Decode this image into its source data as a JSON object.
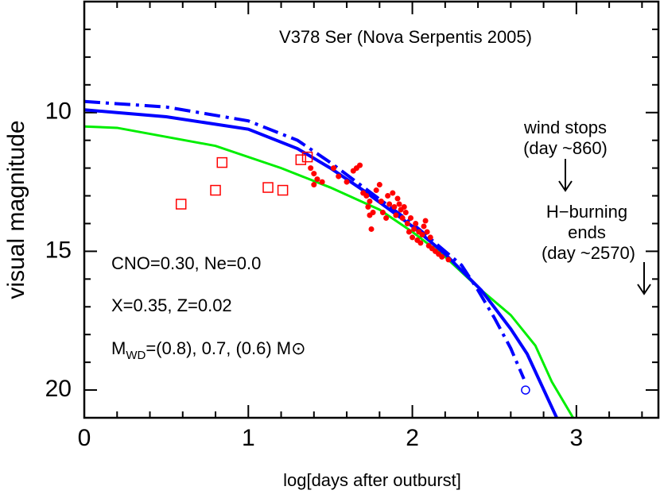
{
  "chart_data": {
    "type": "line",
    "title": "V378 Ser (Nova Serpentis 2005)",
    "xlabel": "log[days after outburst]",
    "ylabel": "visual magnitude",
    "xlim": [
      0,
      3.5
    ],
    "ylim": [
      21,
      6
    ],
    "xticks": [
      0,
      1,
      2,
      3
    ],
    "yticks": [
      10,
      15,
      20
    ],
    "xminorticks": [
      0.2,
      0.4,
      0.6,
      0.8,
      1.2,
      1.4,
      1.6,
      1.8,
      2.2,
      2.4,
      2.6,
      2.8,
      3.2,
      3.4
    ],
    "yminorticks": [
      7,
      8,
      9,
      11,
      12,
      13,
      14,
      16,
      17,
      18,
      19
    ],
    "notes": [
      "wind stops",
      "(day ~860)",
      "H−burning",
      "ends",
      "(day ~2570)",
      "CNO=0.30, Ne=0.0",
      "X=0.35, Z=0.02"
    ],
    "mwd_label": [
      "M",
      "WD",
      "=(0.8), 0.7, (0.6) M⊙"
    ],
    "series": [
      {
        "color": "#00ee00",
        "style": "solid",
        "x": [
          0,
          0.2,
          0.8,
          1.2,
          1.5,
          1.8,
          2.0,
          2.2,
          2.4,
          2.6,
          2.75,
          2.85,
          2.98
        ],
        "values": [
          10.5,
          10.55,
          11.2,
          12.0,
          12.7,
          13.5,
          14.3,
          15.2,
          16.3,
          17.3,
          18.4,
          19.7,
          21
        ]
      },
      {
        "color": "#0000ff",
        "style": "solid",
        "x": [
          0,
          0.2,
          0.5,
          1.0,
          1.3,
          1.5,
          1.7,
          2.0,
          2.2,
          2.42,
          2.6,
          2.7,
          2.88
        ],
        "values": [
          9.9,
          10.0,
          10.15,
          10.6,
          11.3,
          12.0,
          12.8,
          14.1,
          15.1,
          16.4,
          17.8,
          18.7,
          21
        ]
      },
      {
        "color": "#0000ff",
        "style": "dashdot",
        "x": [
          0,
          0.5,
          1.0,
          1.3,
          1.5,
          2.0,
          2.3,
          2.4,
          2.5,
          2.6,
          2.68
        ],
        "values": [
          9.6,
          9.8,
          10.3,
          11.0,
          11.8,
          14.0,
          15.5,
          16.4,
          17.4,
          18.5,
          19.6
        ]
      }
    ],
    "markers": [
      {
        "marker": "dot",
        "color": "#ff0000",
        "x": [
          1.38,
          1.4,
          1.42,
          1.4,
          1.45,
          1.52,
          1.55,
          1.6,
          1.64,
          1.66,
          1.68,
          1.7,
          1.72,
          1.73,
          1.74,
          1.74,
          1.75,
          1.76,
          1.78,
          1.8,
          1.81,
          1.82,
          1.84,
          1.85,
          1.86,
          1.88,
          1.89,
          1.9,
          1.91,
          1.92,
          1.93,
          1.94,
          1.95,
          1.96,
          1.97,
          1.98,
          1.99,
          2.0,
          2.01,
          2.02,
          2.03,
          2.04,
          2.05,
          2.06,
          2.07,
          2.08,
          2.09,
          2.1,
          2.11,
          2.12,
          2.14,
          2.16,
          2.18,
          2.22
        ],
        "y": [
          12.0,
          12.2,
          12.4,
          12.6,
          12.5,
          12.0,
          12.3,
          12.5,
          12.1,
          12.0,
          11.9,
          12.9,
          13.0,
          13.4,
          13.2,
          13.7,
          14.2,
          13.6,
          12.8,
          12.6,
          13.2,
          13.6,
          13.8,
          13.0,
          13.3,
          12.9,
          13.4,
          13.7,
          13.1,
          13.3,
          13.5,
          13.8,
          13.4,
          13.6,
          14.0,
          14.3,
          13.8,
          14.5,
          14.2,
          14.0,
          14.6,
          14.3,
          14.7,
          14.4,
          14.1,
          13.9,
          14.3,
          14.8,
          14.5,
          14.9,
          15.0,
          15.1,
          15.2,
          15.3
        ]
      },
      {
        "marker": "square",
        "color": "#ff0000",
        "x": [
          0.59,
          0.8,
          0.84,
          1.12,
          1.21,
          1.32,
          1.36
        ],
        "y": [
          13.3,
          12.8,
          11.8,
          12.7,
          12.8,
          11.7,
          11.6
        ]
      },
      {
        "marker": "circle",
        "color": "#0000ff",
        "x": [
          2.69
        ],
        "y": [
          20.0
        ]
      }
    ]
  }
}
